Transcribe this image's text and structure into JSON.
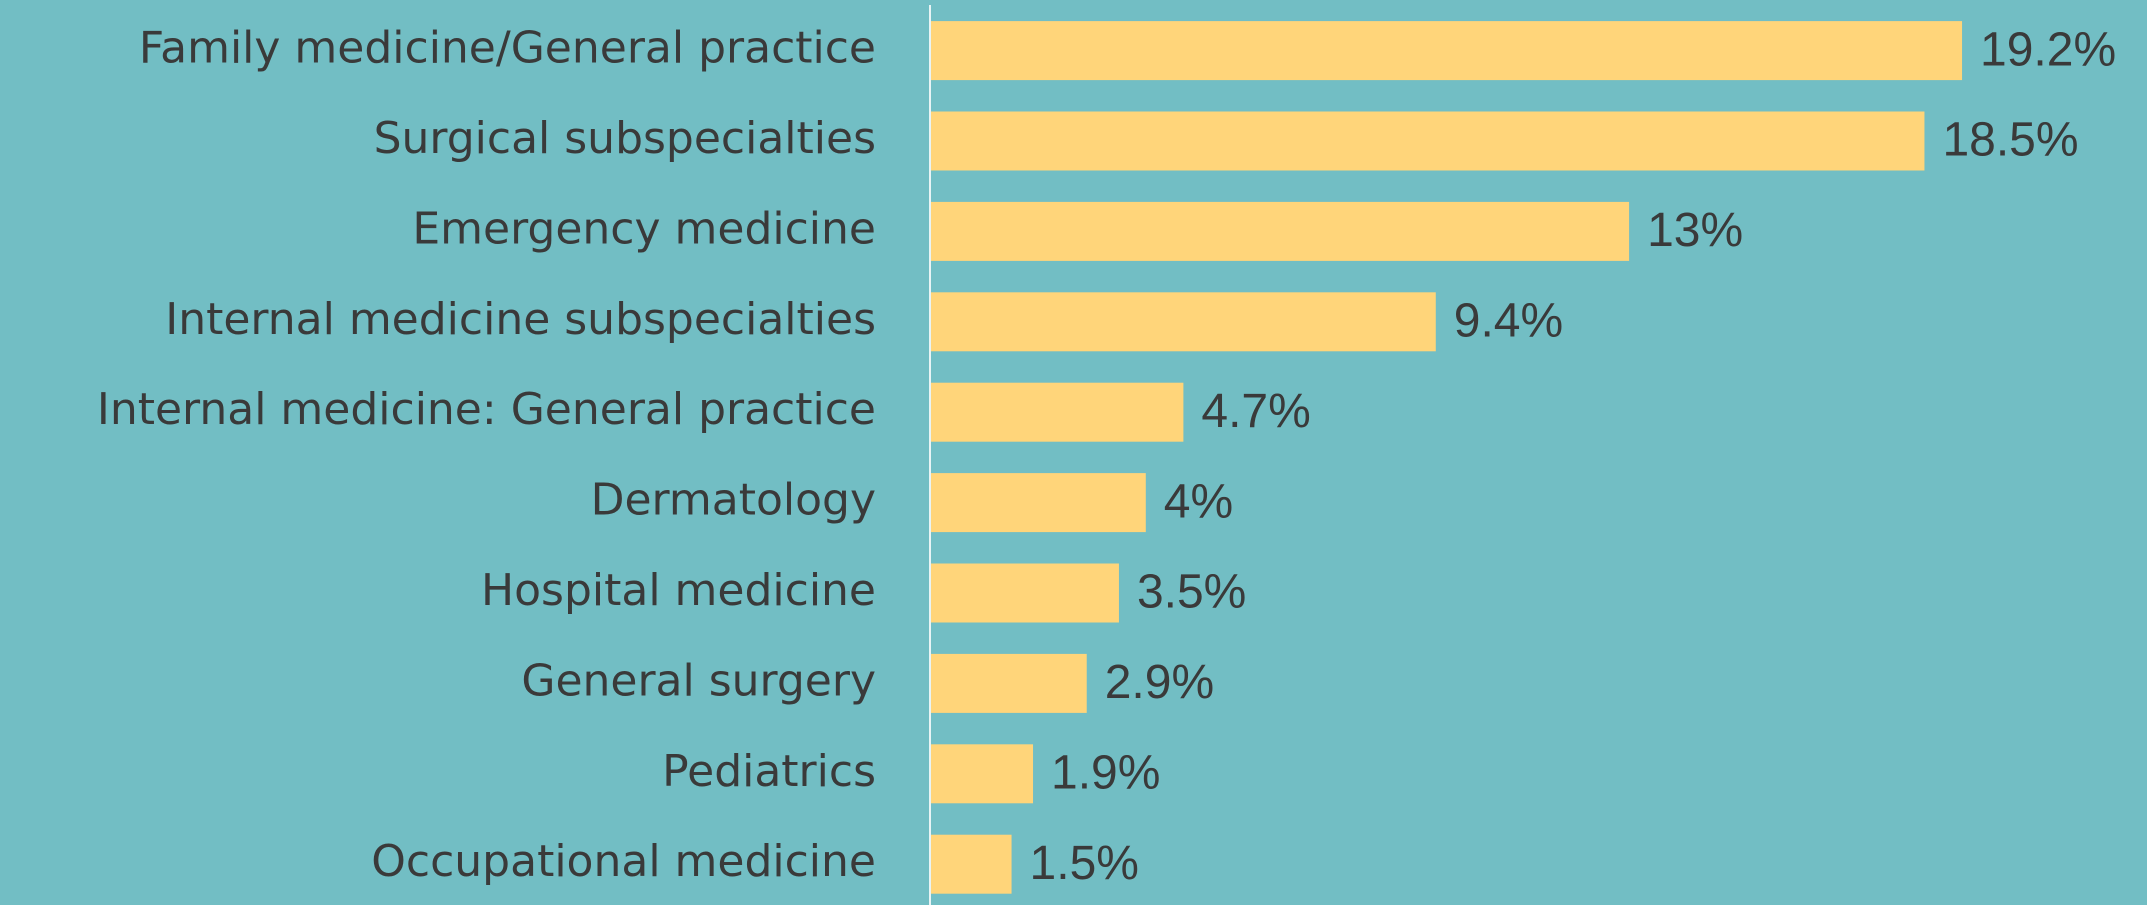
{
  "chart_data": {
    "type": "bar",
    "orientation": "horizontal",
    "categories": [
      "Family medicine/General practice",
      "Surgical subspecialties",
      "Emergency medicine",
      "Internal medicine subspecialties",
      "Internal medicine: General practice",
      "Dermatology",
      "Hospital medicine",
      "General surgery",
      "Pediatrics",
      "Occupational medicine"
    ],
    "values": [
      19.2,
      18.5,
      13,
      9.4,
      4.7,
      4,
      3.5,
      2.9,
      1.9,
      1.5
    ],
    "value_labels": [
      "19.2%",
      "18.5%",
      "13%",
      "9.4%",
      "4.7%",
      "4%",
      "3.5%",
      "2.9%",
      "1.9%",
      "1.5%"
    ],
    "color": "#ffd57a"
  }
}
